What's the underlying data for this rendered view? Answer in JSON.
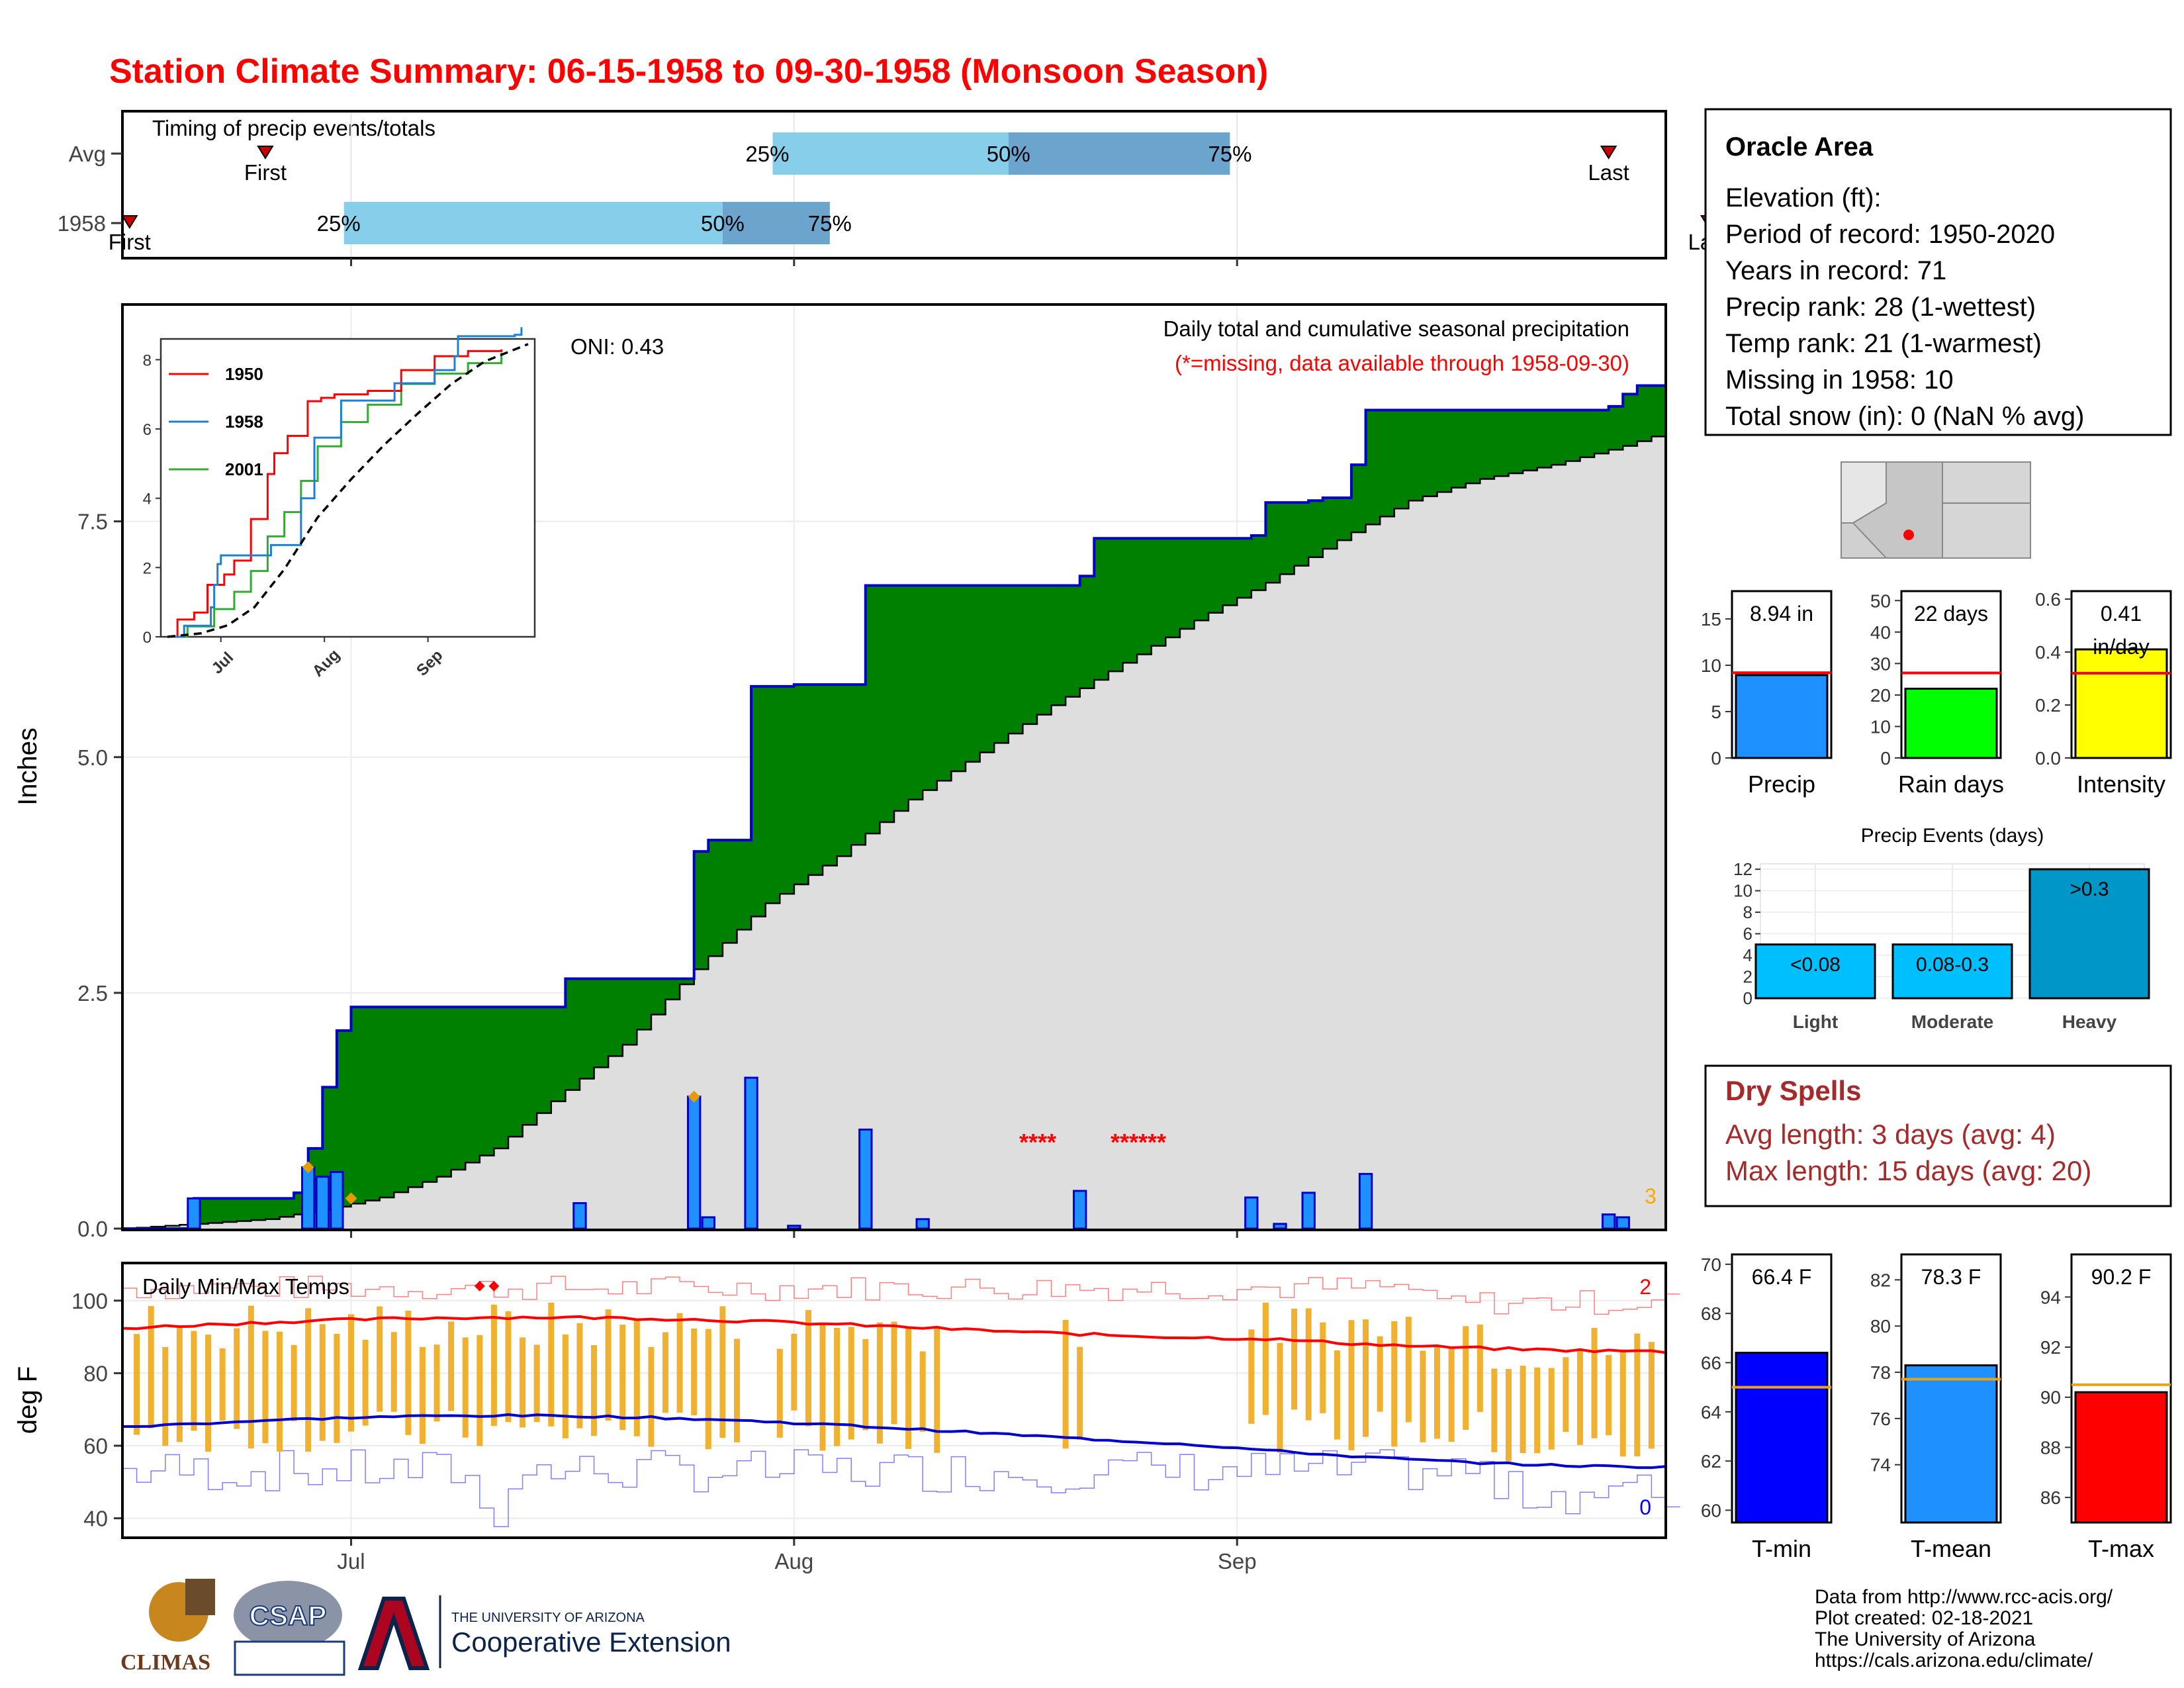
{
  "page": {
    "title": "Station Climate Summary: 06-15-1958 to 09-30-1958 (Monsoon Season)",
    "credits": [
      "Data from http://www.rcc-acis.org/",
      "Plot created: 02-18-2021",
      "The University of Arizona",
      "https://cals.arizona.edu/climate/"
    ],
    "logos": {
      "climas": "CLIMAS",
      "csap": "CSAP",
      "ua_small": "THE UNIVERSITY OF ARIZONA",
      "ua_big": "Cooperative Extension"
    }
  },
  "colors": {
    "title_red": "#ff0000",
    "green": "#008000",
    "blue_line": "#0000cc",
    "bar_blue": "#1e90ff",
    "quartile_light": "#87ceeb",
    "quartile_dark": "#6ba4cc",
    "orange": "#e8a317",
    "dark_red": "#a52a2a",
    "yellow": "#ffff00",
    "lime": "#00ff00"
  },
  "chart_data": [
    {
      "id": "timing",
      "type": "table",
      "title": "Timing of precip events/totals",
      "rows": [
        {
          "label": "Avg",
          "first": "First",
          "q25": "25%",
          "q50": "50%",
          "q75": "75%",
          "last": "Last",
          "first_day": 10,
          "q25_day": 45.5,
          "q50_day": 62,
          "q75_day": 77.5,
          "last_day": 104
        },
        {
          "label": "1958",
          "first": "First",
          "q25": "25%",
          "q50": "50%",
          "q75": "75%",
          "last": "Last",
          "first_day": 0.5,
          "q25_day": 15.5,
          "q50_day": 42,
          "q75_day": 49.5,
          "last_day": 111
        }
      ],
      "month_ticks": [
        "Jul",
        "Aug",
        "Sep"
      ]
    },
    {
      "id": "precip",
      "type": "area",
      "title": "Daily total and cumulative seasonal precipitation",
      "subtitle": "(*=missing, data available through 1958-09-30)",
      "oni": "ONI: 0.43",
      "ylabel": "Inches",
      "y_ticks": [
        "0.0",
        "2.5",
        "5.0",
        "7.5"
      ],
      "ylim": [
        0,
        9.8
      ],
      "xlim_days": [
        0,
        108
      ],
      "x_ticks": [
        "Jul",
        "Aug",
        "Sep"
      ],
      "missing_marks": [
        "****",
        "******"
      ],
      "corner_count": "3",
      "cumulative_1958": [
        [
          0,
          0
        ],
        [
          5,
          0.32
        ],
        [
          12,
          0.38
        ],
        [
          13,
          0.85
        ],
        [
          14,
          1.5
        ],
        [
          15,
          2.1
        ],
        [
          16,
          2.35
        ],
        [
          31,
          2.65
        ],
        [
          40,
          4.0
        ],
        [
          41,
          4.12
        ],
        [
          44,
          5.75
        ],
        [
          47,
          5.77
        ],
        [
          52,
          6.82
        ],
        [
          67,
          6.92
        ],
        [
          68,
          7.32
        ],
        [
          79,
          7.35
        ],
        [
          80,
          7.7
        ],
        [
          83,
          7.72
        ],
        [
          84,
          7.75
        ],
        [
          86,
          8.1
        ],
        [
          87,
          8.68
        ],
        [
          104,
          8.72
        ],
        [
          105,
          8.85
        ],
        [
          106,
          8.94
        ]
      ],
      "average_cumulative": [
        [
          0,
          0
        ],
        [
          5,
          0.05
        ],
        [
          10,
          0.1
        ],
        [
          14,
          0.2
        ],
        [
          18,
          0.33
        ],
        [
          22,
          0.55
        ],
        [
          26,
          0.85
        ],
        [
          30,
          1.35
        ],
        [
          35,
          1.95
        ],
        [
          40,
          2.75
        ],
        [
          45,
          3.45
        ],
        [
          50,
          3.95
        ],
        [
          55,
          4.55
        ],
        [
          60,
          5.05
        ],
        [
          65,
          5.55
        ],
        [
          70,
          6.0
        ],
        [
          75,
          6.45
        ],
        [
          80,
          6.85
        ],
        [
          85,
          7.3
        ],
        [
          90,
          7.72
        ],
        [
          95,
          7.95
        ],
        [
          100,
          8.1
        ],
        [
          105,
          8.3
        ],
        [
          108,
          8.45
        ]
      ],
      "daily_bars": [
        [
          5,
          0.32
        ],
        [
          13,
          0.65
        ],
        [
          14,
          0.55
        ],
        [
          15,
          0.6
        ],
        [
          32,
          0.27
        ],
        [
          40,
          1.4
        ],
        [
          41,
          0.12
        ],
        [
          44,
          1.6
        ],
        [
          47,
          0.03
        ],
        [
          52,
          1.05
        ],
        [
          56,
          0.1
        ],
        [
          67,
          0.4
        ],
        [
          79,
          0.33
        ],
        [
          81,
          0.05
        ],
        [
          83,
          0.38
        ],
        [
          87,
          0.58
        ],
        [
          104,
          0.15
        ],
        [
          105,
          0.12
        ]
      ],
      "diamond_marks": [
        [
          13,
          0.65
        ],
        [
          16,
          0.32
        ],
        [
          40,
          1.4
        ]
      ]
    },
    {
      "id": "inset",
      "type": "line",
      "series": [
        {
          "name": "1950",
          "color": "#ff0000"
        },
        {
          "name": "1958",
          "color": "#1e7fd6"
        },
        {
          "name": "2001",
          "color": "#33aa33"
        }
      ],
      "y_ticks": [
        "0",
        "2",
        "4",
        "6",
        "8"
      ],
      "x_ticks": [
        "Jul",
        "Aug",
        "Sep"
      ],
      "ylim": [
        0,
        8.6
      ],
      "lines": {
        "1950": [
          [
            0,
            0
          ],
          [
            3,
            0.5
          ],
          [
            8,
            0.7
          ],
          [
            12,
            1.5
          ],
          [
            17,
            1.8
          ],
          [
            20,
            2.2
          ],
          [
            25,
            3.4
          ],
          [
            30,
            4.7
          ],
          [
            32,
            5.3
          ],
          [
            36,
            5.8
          ],
          [
            42,
            6.8
          ],
          [
            46,
            6.9
          ],
          [
            50,
            7.0
          ],
          [
            60,
            7.1
          ],
          [
            70,
            7.7
          ],
          [
            80,
            8.1
          ],
          [
            90,
            8.25
          ],
          [
            100,
            8.3
          ]
        ],
        "1958": [
          [
            0,
            0
          ],
          [
            5,
            0.32
          ],
          [
            13,
            0.85
          ],
          [
            14,
            1.5
          ],
          [
            15,
            2.1
          ],
          [
            16,
            2.35
          ],
          [
            31,
            2.65
          ],
          [
            40,
            4.0
          ],
          [
            44,
            5.75
          ],
          [
            52,
            6.82
          ],
          [
            68,
            7.32
          ],
          [
            80,
            7.7
          ],
          [
            86,
            8.1
          ],
          [
            87,
            8.68
          ],
          [
            104,
            8.72
          ],
          [
            106,
            8.94
          ]
        ],
        "2001": [
          [
            0,
            0
          ],
          [
            6,
            0.3
          ],
          [
            14,
            0.8
          ],
          [
            20,
            1.3
          ],
          [
            25,
            1.9
          ],
          [
            30,
            2.9
          ],
          [
            35,
            3.6
          ],
          [
            40,
            4.5
          ],
          [
            45,
            5.5
          ],
          [
            52,
            6.2
          ],
          [
            60,
            6.7
          ],
          [
            70,
            7.3
          ],
          [
            80,
            7.6
          ],
          [
            90,
            7.9
          ],
          [
            100,
            8.2
          ]
        ],
        "average": [
          [
            0,
            0
          ],
          [
            10,
            0.1
          ],
          [
            18,
            0.33
          ],
          [
            26,
            0.85
          ],
          [
            35,
            1.95
          ],
          [
            45,
            3.45
          ],
          [
            55,
            4.55
          ],
          [
            65,
            5.55
          ],
          [
            75,
            6.45
          ],
          [
            85,
            7.3
          ],
          [
            95,
            7.95
          ],
          [
            108,
            8.45
          ]
        ]
      }
    },
    {
      "id": "temps",
      "type": "line",
      "title": "Daily Min/Max Temps",
      "ylabel": "deg F",
      "y_ticks": [
        "40",
        "60",
        "80",
        "100"
      ],
      "ylim": [
        35,
        110
      ],
      "x_ticks": [
        "Jul",
        "Aug",
        "Sep"
      ],
      "count_hot": "2",
      "count_cold": "0",
      "record_max_marks": [
        [
          25,
          104
        ],
        [
          26,
          104
        ]
      ]
    },
    {
      "id": "totals",
      "type": "bar",
      "panels": [
        {
          "label": "Precip",
          "value": 8.94,
          "text": "8.94 in",
          "avg": 9.2,
          "ylim": [
            0,
            18
          ],
          "ticks": [
            "0",
            "5",
            "10",
            "15"
          ],
          "color": "#1e90ff"
        },
        {
          "label": "Rain days",
          "value": 22,
          "text": "22 days",
          "avg": 27,
          "ylim": [
            0,
            53
          ],
          "ticks": [
            "0",
            "10",
            "20",
            "30",
            "40",
            "50"
          ],
          "color": "#00ff00"
        },
        {
          "label": "Intensity",
          "value": 0.41,
          "text": "0.41",
          "text2": "in/day",
          "avg": 0.32,
          "ylim": [
            0,
            0.63
          ],
          "ticks": [
            "0.0",
            "0.2",
            "0.4",
            "0.6"
          ],
          "color": "#ffff00"
        }
      ]
    },
    {
      "id": "events",
      "type": "bar",
      "title": "Precip Events (days)",
      "categories": [
        "Light",
        "Moderate",
        "Heavy"
      ],
      "labels": [
        "<0.08",
        "0.08-0.3",
        ">0.3"
      ],
      "values": [
        5,
        5,
        12
      ],
      "ylim": [
        0,
        12.5
      ],
      "ticks": [
        "0",
        "2",
        "4",
        "6",
        "8",
        "10",
        "12"
      ]
    },
    {
      "id": "temp_means",
      "type": "bar",
      "panels": [
        {
          "label": "T-min",
          "value": 66.4,
          "text": "66.4 F",
          "avg": 65.0,
          "ylim": [
            59.5,
            70.4
          ],
          "ticks": [
            "60",
            "62",
            "64",
            "66",
            "68",
            "70"
          ],
          "color": "#0000ff"
        },
        {
          "label": "T-mean",
          "value": 78.3,
          "text": "78.3 F",
          "avg": 77.7,
          "ylim": [
            71.5,
            83.1
          ],
          "ticks": [
            "74",
            "76",
            "78",
            "80",
            "82"
          ],
          "color": "#1e90ff"
        },
        {
          "label": "T-max",
          "value": 90.2,
          "text": "90.2 F",
          "avg": 90.5,
          "ylim": [
            85.0,
            95.7
          ],
          "ticks": [
            "86",
            "88",
            "90",
            "92",
            "94"
          ],
          "color": "#ff0000"
        }
      ]
    }
  ],
  "station": {
    "name": "Oracle Area",
    "lines": [
      "Elevation (ft):",
      "Period of record: 1950-2020",
      "Years in record: 71",
      "Precip rank: 28 (1-wettest)",
      "Temp rank: 21 (1-warmest)",
      "Missing in 1958: 10",
      "Total snow (in): 0 (NaN % avg)"
    ]
  },
  "dry_spells": {
    "title": "Dry Spells",
    "avg": "Avg length: 3 days (avg: 4)",
    "max": "Max length: 15 days (avg: 20)"
  }
}
